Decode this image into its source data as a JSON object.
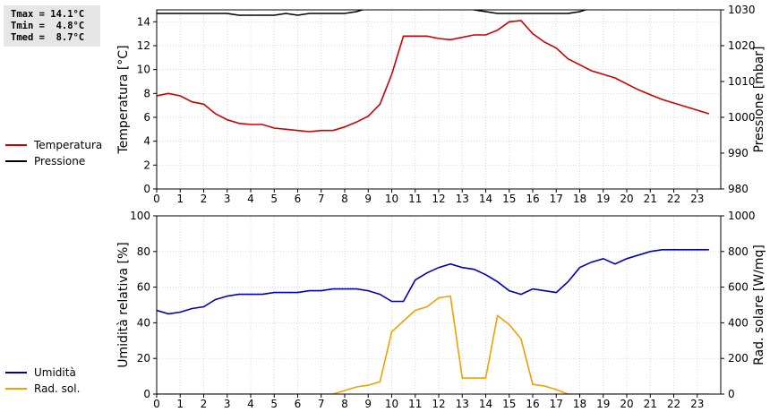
{
  "stats": {
    "tmax": "Tmax = 14.1°C",
    "tmin": "Tmin =  4.8°C",
    "tmed": "Tmed =  8.7°C"
  },
  "colors": {
    "temperature": "#cc0000",
    "pressure": "#000000",
    "humidity": "#0000b4",
    "radiation": "#f0a000"
  },
  "chart_data": [
    {
      "type": "line",
      "x": [
        0,
        0.5,
        1,
        1.5,
        2,
        2.5,
        3,
        3.5,
        4,
        4.5,
        5,
        5.5,
        6,
        6.5,
        7,
        7.5,
        8,
        8.5,
        9,
        9.5,
        10,
        10.5,
        11,
        11.5,
        12,
        12.5,
        13,
        13.5,
        14,
        14.5,
        15,
        15.5,
        16,
        16.5,
        17,
        17.5,
        18,
        18.5,
        19,
        19.5,
        20,
        20.5,
        21,
        21.5,
        22,
        22.5,
        23,
        23.5
      ],
      "xlim": [
        0,
        24
      ],
      "xticks": [
        "0",
        "1",
        "2",
        "3",
        "4",
        "5",
        "6",
        "7",
        "8",
        "9",
        "10",
        "11",
        "12",
        "13",
        "14",
        "15",
        "16",
        "17",
        "18",
        "19",
        "20",
        "21",
        "22",
        "23"
      ],
      "ylabel": "Temperatura [°C]",
      "ylim": [
        0,
        15
      ],
      "yticks": [
        "0",
        "2",
        "4",
        "6",
        "8",
        "10",
        "12",
        "14"
      ],
      "y2label": "Pressione [mbar]",
      "y2lim": [
        980,
        1030
      ],
      "y2ticks": [
        "980",
        "990",
        "1000",
        "1010",
        "1020",
        "1030"
      ],
      "grid": true,
      "series": [
        {
          "name": "Temperatura",
          "axis": "left",
          "values": [
            7.8,
            8.0,
            7.8,
            7.3,
            7.1,
            6.3,
            5.8,
            5.5,
            5.4,
            5.4,
            5.1,
            5.0,
            4.9,
            4.8,
            4.9,
            4.9,
            5.2,
            5.6,
            6.1,
            7.1,
            9.6,
            12.8,
            12.8,
            12.8,
            12.6,
            12.5,
            12.7,
            12.9,
            12.9,
            13.3,
            14.0,
            14.1,
            13.0,
            12.3,
            11.8,
            10.9,
            10.4,
            9.9,
            9.6,
            9.3,
            8.8,
            8.3,
            7.9,
            7.5,
            7.2,
            6.9,
            6.6,
            6.3
          ]
        },
        {
          "name": "Pressione",
          "axis": "right",
          "values": [
            1029,
            1029,
            1029,
            1029,
            1029,
            1029,
            1029,
            1028.5,
            1028.5,
            1028.5,
            1028.5,
            1029,
            1028.5,
            1029,
            1029,
            1029,
            1029,
            1029.5,
            1030.5,
            1031,
            1031,
            1031,
            1031,
            1031,
            1031,
            1031,
            1031,
            1030,
            1029.5,
            1029,
            1029,
            1029,
            1029,
            1029,
            1029,
            1029,
            1029.5,
            1030.5,
            1031,
            1031,
            1031,
            1031,
            1031,
            1031,
            1031,
            1031,
            1031,
            1031
          ]
        }
      ]
    },
    {
      "type": "line",
      "x": [
        0,
        0.5,
        1,
        1.5,
        2,
        2.5,
        3,
        3.5,
        4,
        4.5,
        5,
        5.5,
        6,
        6.5,
        7,
        7.5,
        8,
        8.5,
        9,
        9.5,
        10,
        10.5,
        11,
        11.5,
        12,
        12.5,
        13,
        13.5,
        14,
        14.5,
        15,
        15.5,
        16,
        16.5,
        17,
        17.5,
        18,
        18.5,
        19,
        19.5,
        20,
        20.5,
        21,
        21.5,
        22,
        22.5,
        23,
        23.5
      ],
      "xlim": [
        0,
        24
      ],
      "xticks": [
        "0",
        "1",
        "2",
        "3",
        "4",
        "5",
        "6",
        "7",
        "8",
        "9",
        "10",
        "11",
        "12",
        "13",
        "14",
        "15",
        "16",
        "17",
        "18",
        "19",
        "20",
        "21",
        "22",
        "23"
      ],
      "ylabel": "Umidità relativa [%]",
      "ylim": [
        0,
        100
      ],
      "yticks": [
        "0",
        "20",
        "40",
        "60",
        "80",
        "100"
      ],
      "y2label": "Rad. solare [W/mq]",
      "y2lim": [
        0,
        1000
      ],
      "y2ticks": [
        "0",
        "200",
        "400",
        "600",
        "800",
        "1000"
      ],
      "grid": true,
      "series": [
        {
          "name": "Umidità",
          "axis": "left",
          "values": [
            47,
            45,
            46,
            48,
            49,
            53,
            55,
            56,
            56,
            56,
            57,
            57,
            57,
            58,
            58,
            59,
            59,
            59,
            58,
            56,
            52,
            52,
            64,
            68,
            71,
            73,
            71,
            70,
            67,
            63,
            58,
            56,
            59,
            58,
            57,
            63,
            71,
            74,
            76,
            73,
            76,
            78,
            80,
            81,
            81,
            81,
            81,
            81
          ]
        },
        {
          "name": "Rad. sol.",
          "axis": "right",
          "values": [
            0,
            0,
            0,
            0,
            0,
            0,
            0,
            0,
            0,
            0,
            0,
            0,
            0,
            0,
            0,
            0,
            20,
            40,
            50,
            70,
            350,
            410,
            470,
            490,
            540,
            550,
            90,
            90,
            90,
            440,
            390,
            310,
            55,
            45,
            25,
            0,
            0,
            0,
            0,
            0,
            0,
            0,
            0,
            0,
            0,
            0,
            0,
            0
          ]
        }
      ]
    }
  ]
}
